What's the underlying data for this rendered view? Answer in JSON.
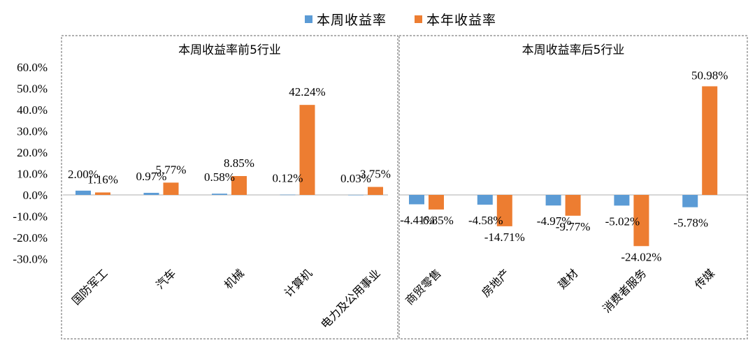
{
  "colors": {
    "weekly": "#5B9BD5",
    "ytd": "#ED7D31",
    "border": "#808080",
    "zero_line": "#BFBFBF"
  },
  "legend": {
    "weekly_label": "本周收益率",
    "ytd_label": "本年收益率"
  },
  "chart_data": [
    {
      "type": "bar",
      "title": "本周收益率前5行业",
      "categories": [
        "国防军工",
        "汽车",
        "机械",
        "计算机",
        "电力及公用事业"
      ],
      "series": [
        {
          "name": "本周收益率",
          "values": [
            2.0,
            0.97,
            0.58,
            0.12,
            0.03
          ],
          "labels": [
            "2.00%",
            "0.97%",
            "0.58%",
            "0.12%",
            "0.03%"
          ]
        },
        {
          "name": "本年收益率",
          "values": [
            1.16,
            5.77,
            8.85,
            42.24,
            3.75
          ],
          "labels": [
            "1.16%",
            "5.77%",
            "8.85%",
            "42.24%",
            "3.75%"
          ]
        }
      ],
      "yticks": [
        "60.0%",
        "50.0%",
        "40.0%",
        "30.0%",
        "20.0%",
        "10.0%",
        "0.0%",
        "-10.0%",
        "-20.0%",
        "-30.0%"
      ],
      "ylim": [
        -30,
        60
      ],
      "legend": "top-center"
    },
    {
      "type": "bar",
      "title": "本周收益率后5行业",
      "categories": [
        "商贸零售",
        "房地产",
        "建材",
        "消费者服务",
        "传媒"
      ],
      "series": [
        {
          "name": "本周收益率",
          "values": [
            -4.41,
            -4.58,
            -4.97,
            -5.02,
            -5.78
          ],
          "labels": [
            "-4.41%",
            "-4.58%",
            "-4.97%",
            "-5.02%",
            "-5.78%"
          ]
        },
        {
          "name": "本年收益率",
          "values": [
            -6.85,
            -14.71,
            -9.77,
            -24.02,
            50.98
          ],
          "labels": [
            "-6.85%",
            "-14.71%",
            "-9.77%",
            "-24.02%",
            "50.98%"
          ]
        }
      ],
      "ylim": [
        -30,
        60
      ]
    }
  ]
}
